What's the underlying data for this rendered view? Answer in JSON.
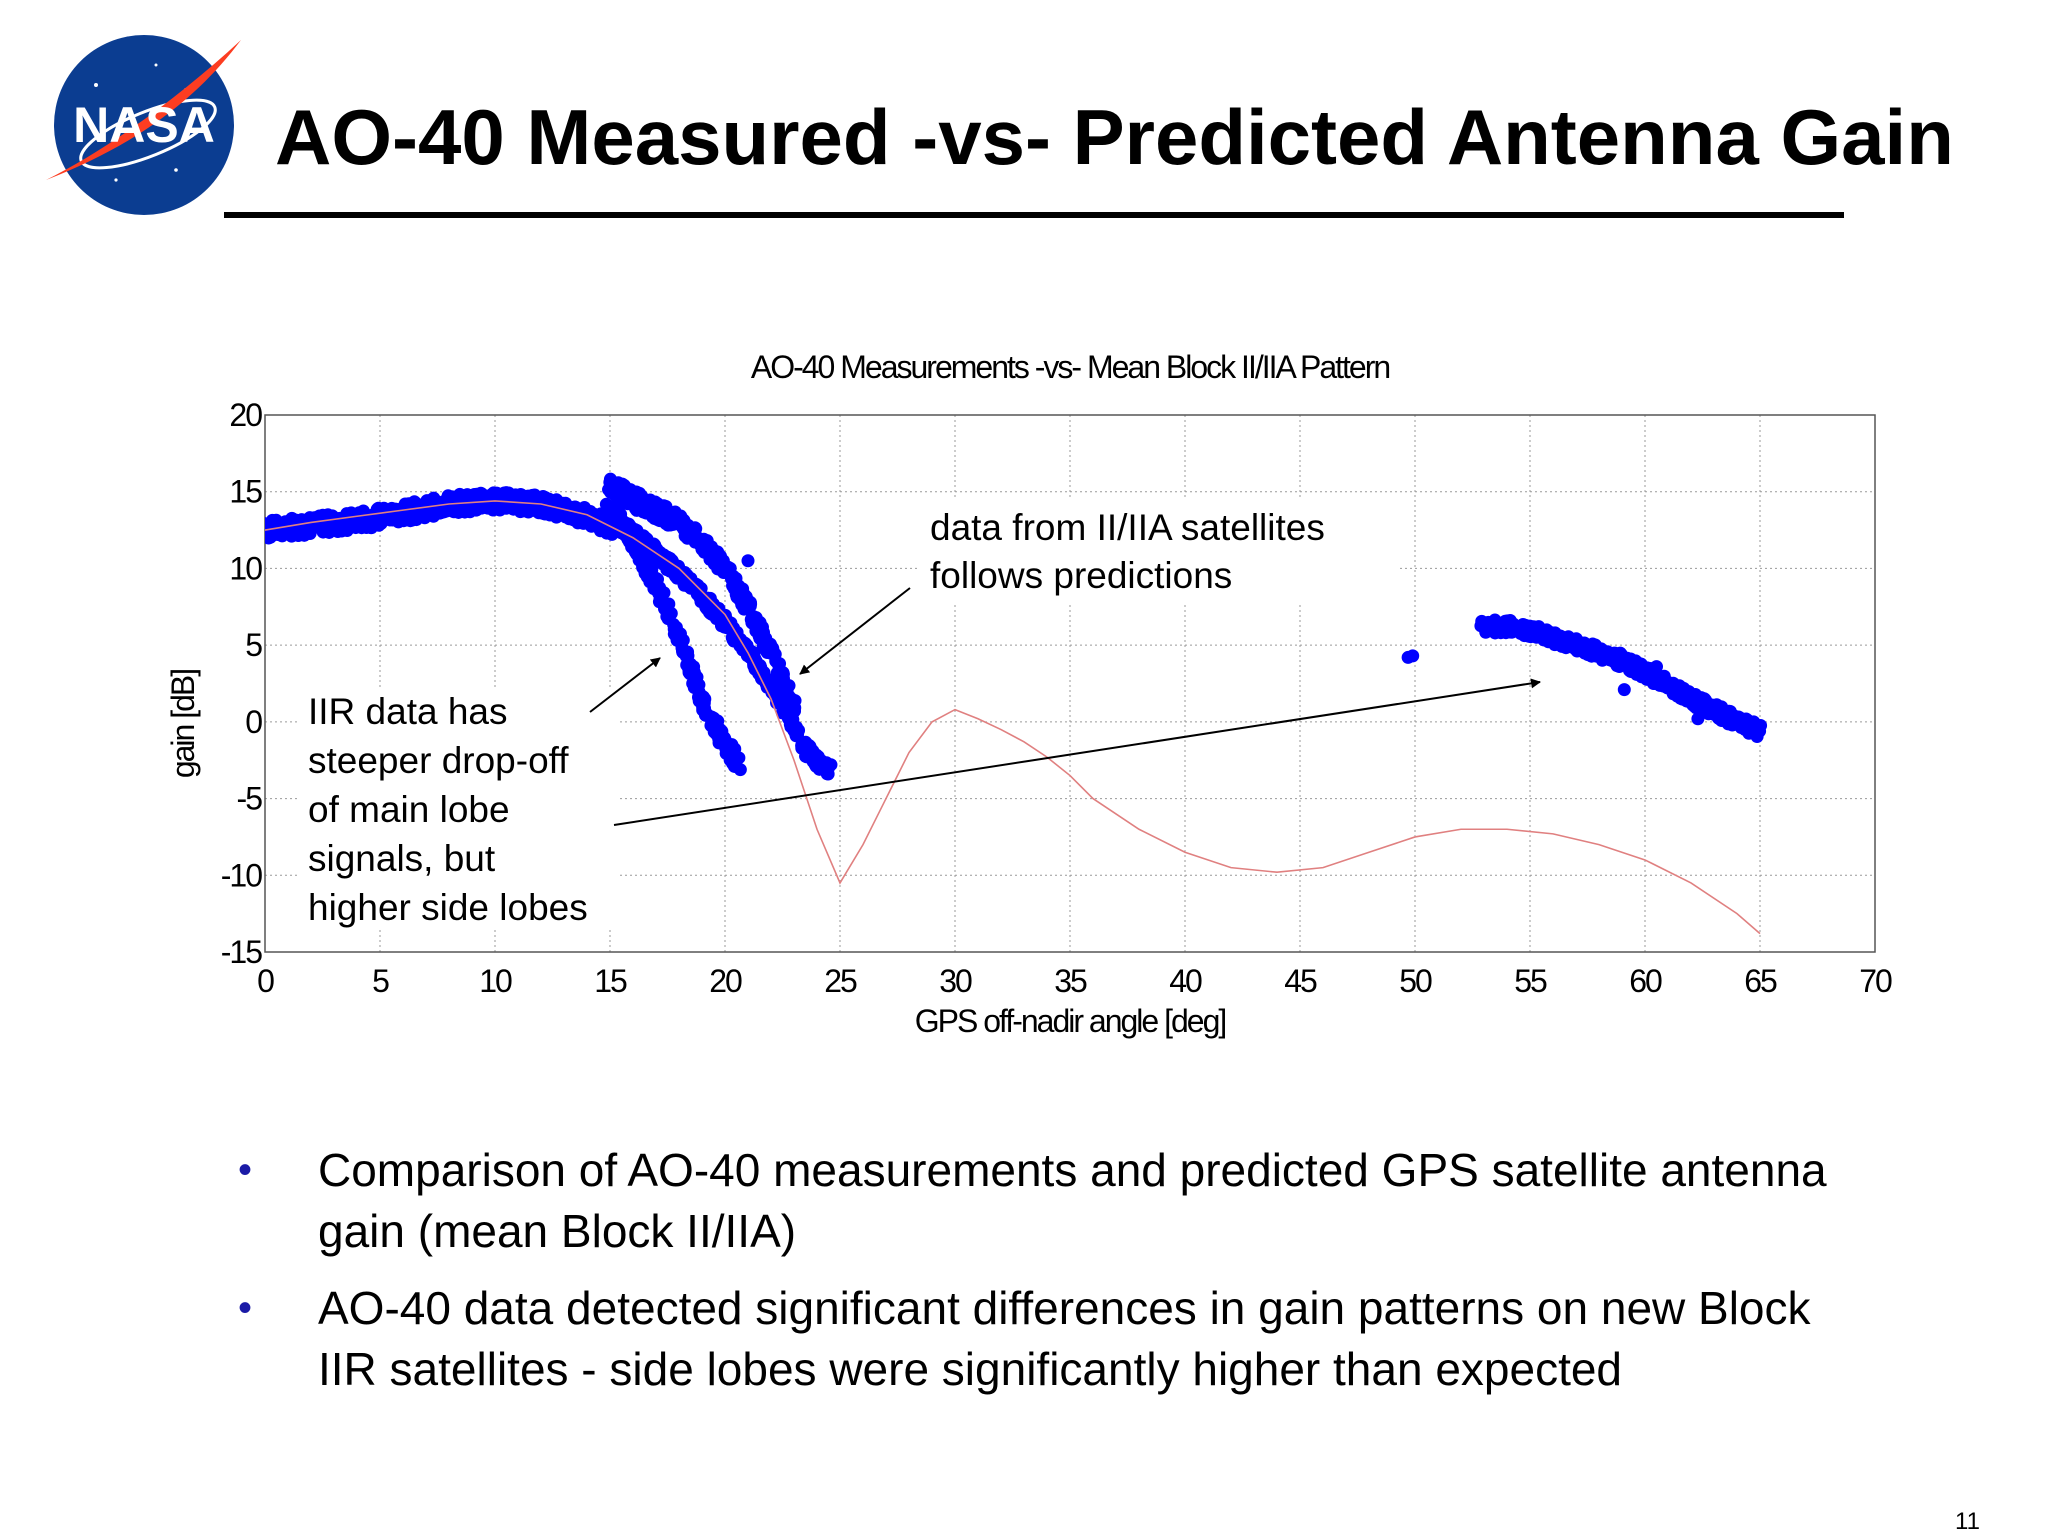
{
  "slide": {
    "logo_text": "NASA",
    "title": "AO-40 Measured -vs- Predicted Antenna Gain",
    "page_number": "11"
  },
  "bullets": [
    "Comparison of AO-40 measurements and predicted GPS satellite antenna gain (mean Block II/IIA)",
    "AO-40 data detected significant differences in gain patterns on new Block IIR satellites - side lobes were significantly higher than expected"
  ],
  "colors": {
    "measurement_points": "#0000ff",
    "prediction_line": "#e08080",
    "bullet": "#1a1aa6",
    "logo_blue": "#0b3d91",
    "logo_red": "#fc3d21"
  },
  "chart_data": {
    "type": "scatter",
    "title": "AO-40 Measurements -vs- Mean Block II/IIA Pattern",
    "xlabel": "GPS off-nadir angle [deg]",
    "ylabel": "gain [dB]",
    "xlim": [
      0,
      70
    ],
    "ylim": [
      -15,
      20
    ],
    "xticks": [
      0,
      5,
      10,
      15,
      20,
      25,
      30,
      35,
      40,
      45,
      50,
      55,
      60,
      65,
      70
    ],
    "yticks": [
      20,
      15,
      10,
      5,
      0,
      -5,
      -10,
      -15
    ],
    "grid": true,
    "series": [
      {
        "kind": "line",
        "x": [
          0,
          2,
          4,
          6,
          8,
          10,
          12,
          14,
          16,
          18,
          20,
          21,
          22,
          23,
          24,
          25,
          26,
          27,
          28,
          29,
          30,
          31,
          32,
          33,
          34,
          35,
          36,
          38,
          40,
          42,
          44,
          46,
          48,
          50,
          52,
          54,
          56,
          58,
          60,
          62,
          64,
          65
        ],
        "y": [
          12.5,
          13,
          13.4,
          13.8,
          14.2,
          14.4,
          14.2,
          13.5,
          12,
          10,
          7,
          4.5,
          1.5,
          -2.5,
          -7,
          -10.5,
          -8,
          -5,
          -2,
          0,
          0.8,
          0.2,
          -0.5,
          -1.3,
          -2.3,
          -3.5,
          -5,
          -7,
          -8.5,
          -9.5,
          -9.8,
          -9.5,
          -8.5,
          -7.5,
          -7,
          -7,
          -7.3,
          -8,
          -9,
          -10.5,
          -12.5,
          -13.8
        ]
      },
      {
        "kind": "points",
        "bands": [
          {
            "x": [
              0,
              2,
              4,
              6,
              8,
              10,
              12,
              13,
              14,
              15
            ],
            "y": [
              12.5,
              12.8,
              13.1,
              13.6,
              14.2,
              14.4,
              14.2,
              13.8,
              13.4,
              12.8
            ],
            "spread": 1.2
          },
          {
            "x": [
              15,
              16,
              17,
              18,
              19,
              20,
              20.5
            ],
            "y": [
              14,
              11.8,
              9,
              5.5,
              1.5,
              -1.5,
              -2.5
            ],
            "spread": 1.3
          },
          {
            "x": [
              15,
              16,
              17,
              18,
              19,
              20,
              21,
              22,
              23
            ],
            "y": [
              15.5,
              14.5,
              13.8,
              13,
              11.8,
              10,
              7.5,
              4.5,
              1
            ],
            "spread": 1.2
          },
          {
            "x": [
              15.5,
              17,
              18.5,
              20,
              21.5,
              22.5,
              23.5,
              24.5
            ],
            "y": [
              12.8,
              11,
              9,
              6.5,
              3.5,
              1,
              -1.8,
              -3.2
            ],
            "spread": 1.0
          },
          {
            "x": [
              53,
              54,
              55,
              56,
              57,
              58,
              59,
              60,
              61,
              62,
              63,
              64,
              65
            ],
            "y": [
              6.2,
              6.2,
              6,
              5.5,
              5,
              4.5,
              4,
              3.2,
              2.5,
              1.5,
              0.8,
              0,
              -0.6
            ],
            "spread": 0.9
          }
        ],
        "outliers": [
          {
            "x": 49.7,
            "y": 4.2
          },
          {
            "x": 49.9,
            "y": 4.3
          },
          {
            "x": 59.1,
            "y": 2.1
          },
          {
            "x": 62.3,
            "y": 0.2
          },
          {
            "x": 21,
            "y": 10.5
          },
          {
            "x": 60.5,
            "y": 3.6
          }
        ]
      }
    ],
    "annotations": [
      {
        "lines": [
          "data from II/IIA satellites",
          "follows predictions"
        ]
      },
      {
        "lines": [
          "IIR data has",
          "steeper drop-off",
          "of main lobe",
          "signals, but",
          "higher side lobes"
        ]
      }
    ]
  }
}
